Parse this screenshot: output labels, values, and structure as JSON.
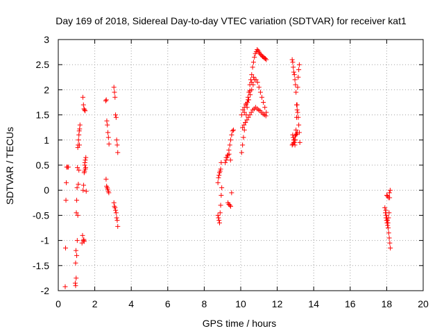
{
  "chart_data": {
    "type": "scatter",
    "title": "Day 169 of 2018, Sidereal Day-to-day VTEC variation (SDTVAR) for receiver kat1",
    "xlabel": "GPS time / hours",
    "ylabel": "SDTVAR / TECUs",
    "xlim": [
      0,
      20
    ],
    "ylim": [
      -2,
      3
    ],
    "x_ticks": [
      "0",
      "2",
      "4",
      "6",
      "8",
      "10",
      "12",
      "14",
      "16",
      "18",
      "20"
    ],
    "y_ticks": [
      "-2",
      "-1.5",
      "-1",
      "-0.5",
      "0",
      "0.5",
      "1",
      "1.5",
      "2",
      "2.5",
      "3"
    ],
    "grid": true,
    "marker": "+",
    "color": "#ff0000",
    "series": [
      {
        "name": "SDTVAR",
        "segments": [
          {
            "x": [
              0.38,
              0.4,
              0.42,
              0.44,
              0.46,
              0.5,
              0.55
            ],
            "y": [
              -1.92,
              -1.15,
              -0.2,
              0.15,
              0.46,
              0.46,
              0.46
            ]
          },
          {
            "x": [
              0.93,
              0.95,
              0.97,
              0.99,
              1.01,
              1.03,
              1.05,
              1.07,
              1.09,
              1.11,
              1.13,
              1.15,
              1.17,
              1.19
            ],
            "y": [
              -1.85,
              -1.45,
              -1.2,
              -0.45,
              -0.2,
              0.05,
              0.45,
              0.85,
              0.9,
              1.0,
              1.1,
              1.18,
              1.22,
              1.3
            ]
          },
          {
            "x": [
              0.95,
              0.98,
              1.01,
              1.04,
              1.07,
              1.1,
              1.13,
              1.16
            ],
            "y": [
              -1.9,
              -1.75,
              -1.3,
              -1.0,
              -0.5,
              0.12,
              0.4,
              0.9
            ]
          },
          {
            "x": [
              1.3,
              1.33,
              1.36,
              1.39,
              1.42,
              1.45,
              1.48,
              1.51
            ],
            "y": [
              -1.05,
              -0.9,
              0.0,
              0.1,
              0.35,
              0.5,
              0.6,
              0.65
            ]
          },
          {
            "x": [
              1.35,
              1.38,
              1.41,
              1.44,
              1.47,
              1.5,
              1.53
            ],
            "y": [
              1.85,
              1.7,
              1.62,
              1.6,
              1.58,
              0.45,
              -0.02
            ]
          },
          {
            "x": [
              1.38,
              1.4,
              1.42,
              1.44,
              1.46,
              1.48
            ],
            "y": [
              -1.0,
              -0.98,
              -1.02,
              0.38,
              0.55,
              0.42
            ]
          },
          {
            "x": [
              2.6,
              2.63,
              2.66,
              2.69,
              2.72,
              2.75,
              2.78
            ],
            "y": [
              1.78,
              1.8,
              1.38,
              1.3,
              1.15,
              1.05,
              0.92
            ]
          },
          {
            "x": [
              2.62,
              2.65,
              2.68,
              2.71,
              2.74,
              2.77
            ],
            "y": [
              0.22,
              0.08,
              0.05,
              0.02,
              -0.02,
              -0.05
            ]
          },
          {
            "x": [
              3.05,
              3.08,
              3.11,
              3.14,
              3.17,
              3.2,
              3.23,
              3.26
            ],
            "y": [
              2.05,
              1.95,
              1.85,
              1.5,
              1.45,
              1.0,
              0.9,
              0.75
            ]
          },
          {
            "x": [
              3.05,
              3.08,
              3.11,
              3.14,
              3.17,
              3.2,
              3.23,
              3.26
            ],
            "y": [
              -0.25,
              -0.32,
              -0.35,
              -0.4,
              -0.45,
              -0.55,
              -0.6,
              -0.72
            ]
          },
          {
            "x": [
              8.75,
              8.78,
              8.81,
              8.84,
              8.87,
              8.9,
              8.93,
              8.96
            ],
            "y": [
              -0.5,
              -0.55,
              -0.6,
              -0.65,
              -0.45,
              -0.3,
              -0.1,
              0.05
            ]
          },
          {
            "x": [
              8.75,
              8.78,
              8.81,
              8.84,
              8.87,
              8.9,
              8.93
            ],
            "y": [
              0.15,
              0.25,
              0.3,
              0.35,
              0.38,
              0.42,
              0.55
            ]
          },
          {
            "x": [
              9.15,
              9.2,
              9.25,
              9.3,
              9.35,
              9.4,
              9.45,
              9.5,
              9.55,
              9.6
            ],
            "y": [
              0.55,
              0.6,
              0.65,
              0.7,
              0.8,
              0.9,
              1.0,
              1.1,
              1.18,
              1.2
            ]
          },
          {
            "x": [
              9.2,
              9.28,
              9.36,
              9.44,
              9.5
            ],
            "y": [
              0.65,
              0.7,
              0.72,
              0.6,
              -0.05
            ]
          },
          {
            "x": [
              9.3,
              9.35,
              9.4,
              9.45
            ],
            "y": [
              -0.25,
              -0.28,
              -0.3,
              -0.32
            ]
          },
          {
            "x": [
              10.05,
              10.1,
              10.15,
              10.2,
              10.25,
              10.3,
              10.35,
              10.4,
              10.45,
              10.5,
              10.55,
              10.6,
              10.65,
              10.7,
              10.75,
              10.8,
              10.85,
              10.9,
              10.95,
              11.0,
              11.05,
              11.1,
              11.15,
              11.2,
              11.25,
              11.3,
              11.35,
              11.4
            ],
            "y": [
              0.75,
              0.9,
              1.05,
              1.2,
              1.35,
              1.5,
              1.65,
              1.8,
              1.95,
              2.1,
              2.2,
              2.3,
              2.45,
              2.55,
              2.65,
              2.72,
              2.76,
              2.8,
              2.78,
              2.75,
              2.72,
              2.7,
              2.68,
              2.66,
              2.65,
              2.63,
              2.62,
              2.6
            ]
          },
          {
            "x": [
              10.05,
              10.12,
              10.2,
              10.28,
              10.36,
              10.44,
              10.52,
              10.6,
              10.68,
              10.76,
              10.84,
              10.92,
              11.0,
              11.08,
              11.16,
              11.24,
              11.32,
              11.4
            ],
            "y": [
              1.5,
              1.6,
              1.65,
              1.7,
              1.75,
              1.8,
              1.9,
              2.0,
              2.1,
              2.2,
              2.2,
              2.15,
              2.05,
              1.95,
              1.85,
              1.75,
              1.65,
              1.55
            ]
          },
          {
            "x": [
              10.1,
              10.18,
              10.26,
              10.34,
              10.42,
              10.5,
              10.58,
              10.66,
              10.74,
              10.82,
              10.9,
              10.98,
              11.06,
              11.14,
              11.22,
              11.3,
              11.38
            ],
            "y": [
              1.25,
              1.3,
              1.35,
              1.4,
              1.45,
              1.5,
              1.55,
              1.6,
              1.62,
              1.65,
              1.62,
              1.6,
              1.58,
              1.55,
              1.52,
              1.5,
              1.48
            ]
          },
          {
            "x": [
              10.2,
              10.3,
              10.4,
              10.5,
              10.6,
              10.7
            ],
            "y": [
              1.55,
              1.72,
              1.85,
              1.98,
              2.15,
              2.25
            ]
          },
          {
            "x": [
              12.82,
              12.85,
              12.88,
              12.91,
              12.94,
              12.97,
              13.0,
              13.03,
              13.06,
              13.09,
              13.12,
              13.15,
              13.18,
              13.21,
              13.24
            ],
            "y": [
              2.6,
              2.55,
              2.45,
              2.35,
              2.3,
              2.2,
              2.1,
              1.95,
              1.7,
              1.6,
              1.55,
              1.45,
              1.3,
              1.15,
              0.95
            ]
          },
          {
            "x": [
              12.85,
              12.88,
              12.91,
              12.94,
              12.97,
              13.0,
              13.03,
              13.06,
              13.09,
              13.12,
              13.15,
              13.18,
              13.21
            ],
            "y": [
              1.1,
              1.05,
              1.0,
              0.95,
              0.9,
              1.0,
              1.2,
              1.45,
              1.7,
              2.05,
              2.25,
              2.4,
              2.5
            ]
          },
          {
            "x": [
              12.82,
              12.86,
              12.9,
              12.94,
              12.98,
              13.02,
              13.06,
              13.1
            ],
            "y": [
              0.9,
              0.92,
              0.95,
              1.0,
              1.08,
              1.1,
              1.12,
              1.15
            ]
          },
          {
            "x": [
              17.9,
              17.93,
              17.96,
              17.99,
              18.02,
              18.05,
              18.08,
              18.11,
              18.14,
              18.17,
              18.2
            ],
            "y": [
              -0.35,
              -0.45,
              -0.55,
              -0.6,
              -0.65,
              -0.7,
              -0.75,
              -0.85,
              -0.95,
              -1.05,
              -1.15
            ]
          },
          {
            "x": [
              17.95,
              17.98,
              18.01,
              18.04,
              18.07,
              18.1,
              18.13,
              18.16,
              18.19
            ],
            "y": [
              -0.4,
              -0.5,
              -0.55,
              -0.6,
              -0.65,
              -0.55,
              -0.45,
              -0.15,
              0.0
            ]
          },
          {
            "x": [
              18.0,
              18.05,
              18.1,
              18.15
            ],
            "y": [
              -0.1,
              -0.12,
              -0.15,
              -0.05
            ]
          }
        ]
      }
    ]
  }
}
